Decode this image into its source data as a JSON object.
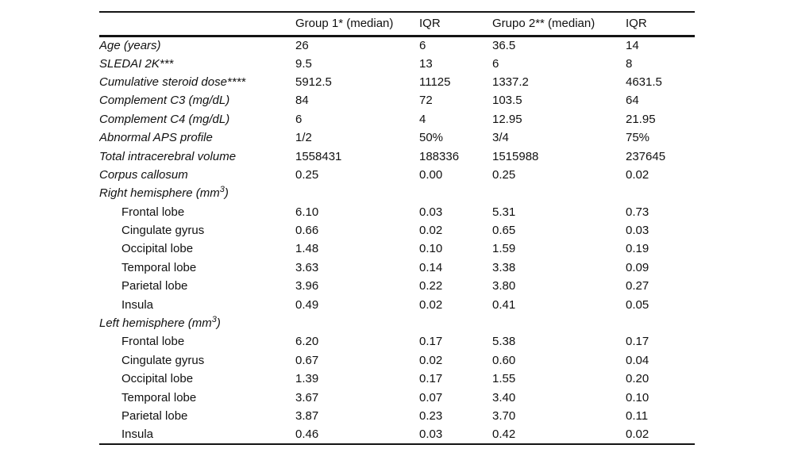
{
  "page": {
    "background": "#ffffff",
    "text_color": "#111111",
    "rule_color": "#141414"
  },
  "table": {
    "columns": [
      "",
      "Group 1* (median)",
      "IQR",
      "Grupo 2** (median)",
      "IQR"
    ],
    "rows": [
      {
        "label": "Age (years)",
        "italic": true,
        "indent": false,
        "section": false,
        "values": [
          "26",
          "6",
          "36.5",
          "14"
        ]
      },
      {
        "label": "SLEDAI 2K***",
        "italic": true,
        "indent": false,
        "section": false,
        "values": [
          "9.5",
          "13",
          "6",
          "8"
        ]
      },
      {
        "label": "Cumulative steroid dose****",
        "italic": true,
        "indent": false,
        "section": false,
        "values": [
          "5912.5",
          "11125",
          "1337.2",
          "4631.5"
        ]
      },
      {
        "label": "Complement C3 (mg/dL)",
        "italic": true,
        "indent": false,
        "section": false,
        "values": [
          "84",
          "72",
          "103.5",
          "64"
        ]
      },
      {
        "label": "Complement C4 (mg/dL)",
        "italic": true,
        "indent": false,
        "section": false,
        "values": [
          "6",
          "4",
          "12.95",
          "21.95"
        ]
      },
      {
        "label": "Abnormal APS profile",
        "italic": true,
        "indent": false,
        "section": false,
        "values": [
          "1/2",
          "50%",
          "3/4",
          "75%"
        ]
      },
      {
        "label": "Total intracerebral volume",
        "italic": true,
        "indent": false,
        "section": false,
        "values": [
          "1558431",
          "188336",
          "1515988",
          "237645"
        ]
      },
      {
        "label": "Corpus callosum",
        "italic": true,
        "indent": false,
        "section": false,
        "values": [
          "0.25",
          "0.00",
          "0.25",
          "0.02"
        ]
      },
      {
        "label": "Right hemisphere (mm³)",
        "italic": true,
        "indent": false,
        "section": true,
        "values": []
      },
      {
        "label": "Frontal lobe",
        "italic": false,
        "indent": true,
        "section": false,
        "values": [
          "6.10",
          "0.03",
          "5.31",
          "0.73"
        ]
      },
      {
        "label": "Cingulate gyrus",
        "italic": false,
        "indent": true,
        "section": false,
        "values": [
          "0.66",
          "0.02",
          "0.65",
          "0.03"
        ]
      },
      {
        "label": "Occipital lobe",
        "italic": false,
        "indent": true,
        "section": false,
        "values": [
          "1.48",
          "0.10",
          "1.59",
          "0.19"
        ]
      },
      {
        "label": "Temporal lobe",
        "italic": false,
        "indent": true,
        "section": false,
        "values": [
          "3.63",
          "0.14",
          "3.38",
          "0.09"
        ]
      },
      {
        "label": "Parietal lobe",
        "italic": false,
        "indent": true,
        "section": false,
        "values": [
          "3.96",
          "0.22",
          "3.80",
          "0.27"
        ]
      },
      {
        "label": "Insula",
        "italic": false,
        "indent": true,
        "section": false,
        "values": [
          "0.49",
          "0.02",
          "0.41",
          "0.05"
        ]
      },
      {
        "label": "Left hemisphere (mm³)",
        "italic": true,
        "indent": false,
        "section": true,
        "values": []
      },
      {
        "label": "Frontal lobe",
        "italic": false,
        "indent": true,
        "section": false,
        "values": [
          "6.20",
          "0.17",
          "5.38",
          "0.17"
        ]
      },
      {
        "label": "Cingulate gyrus",
        "italic": false,
        "indent": true,
        "section": false,
        "values": [
          "0.67",
          "0.02",
          "0.60",
          "0.04"
        ]
      },
      {
        "label": "Occipital lobe",
        "italic": false,
        "indent": true,
        "section": false,
        "values": [
          "1.39",
          "0.17",
          "1.55",
          "0.20"
        ]
      },
      {
        "label": "Temporal lobe",
        "italic": false,
        "indent": true,
        "section": false,
        "values": [
          "3.67",
          "0.07",
          "3.40",
          "0.10"
        ]
      },
      {
        "label": "Parietal lobe",
        "italic": false,
        "indent": true,
        "section": false,
        "values": [
          "3.87",
          "0.23",
          "3.70",
          "0.11"
        ]
      },
      {
        "label": "Insula",
        "italic": false,
        "indent": true,
        "section": false,
        "values": [
          "0.46",
          "0.03",
          "0.42",
          "0.02"
        ]
      }
    ]
  }
}
